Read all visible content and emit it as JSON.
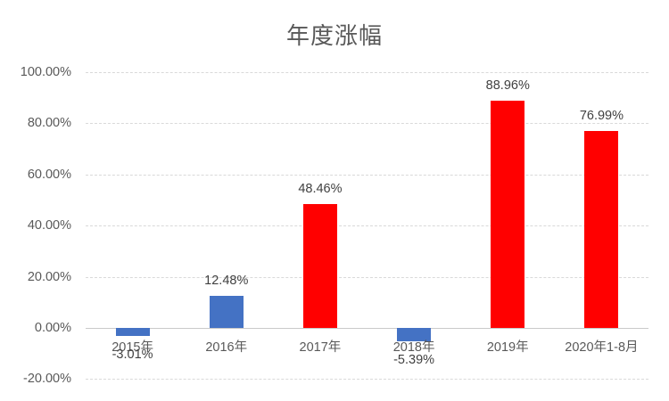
{
  "chart_data": {
    "type": "bar",
    "title": "年度涨幅",
    "categories": [
      "2015年",
      "2016年",
      "2017年",
      "2018年",
      "2019年",
      "2020年1-8月"
    ],
    "values": [
      -3.01,
      12.48,
      48.46,
      -5.39,
      88.96,
      76.99
    ],
    "data_labels": [
      "-3.01%",
      "12.48%",
      "48.46%",
      "-5.39%",
      "88.96%",
      "76.99%"
    ],
    "bar_colors": [
      "#4472C4",
      "#4472C4",
      "#FF0000",
      "#4472C4",
      "#FF0000",
      "#FF0000"
    ],
    "ylim": [
      -20,
      100
    ],
    "yticks": [
      100,
      80,
      60,
      40,
      20,
      0,
      -20
    ],
    "ytick_labels": [
      "100.00%",
      "80.00%",
      "60.00%",
      "40.00%",
      "20.00%",
      "0.00%",
      "-20.00%"
    ],
    "xlabel": "",
    "ylabel": "",
    "grid": true,
    "legend": false
  },
  "style": {
    "title_color": "#595959",
    "axis_text_color": "#595959",
    "data_label_color": "#404040",
    "gridline_color": "#D9D9D9",
    "axis_line_color": "#C9C9C9",
    "background": "#FFFFFF",
    "bar_blue": "#4472C4",
    "bar_red": "#FF0000"
  }
}
